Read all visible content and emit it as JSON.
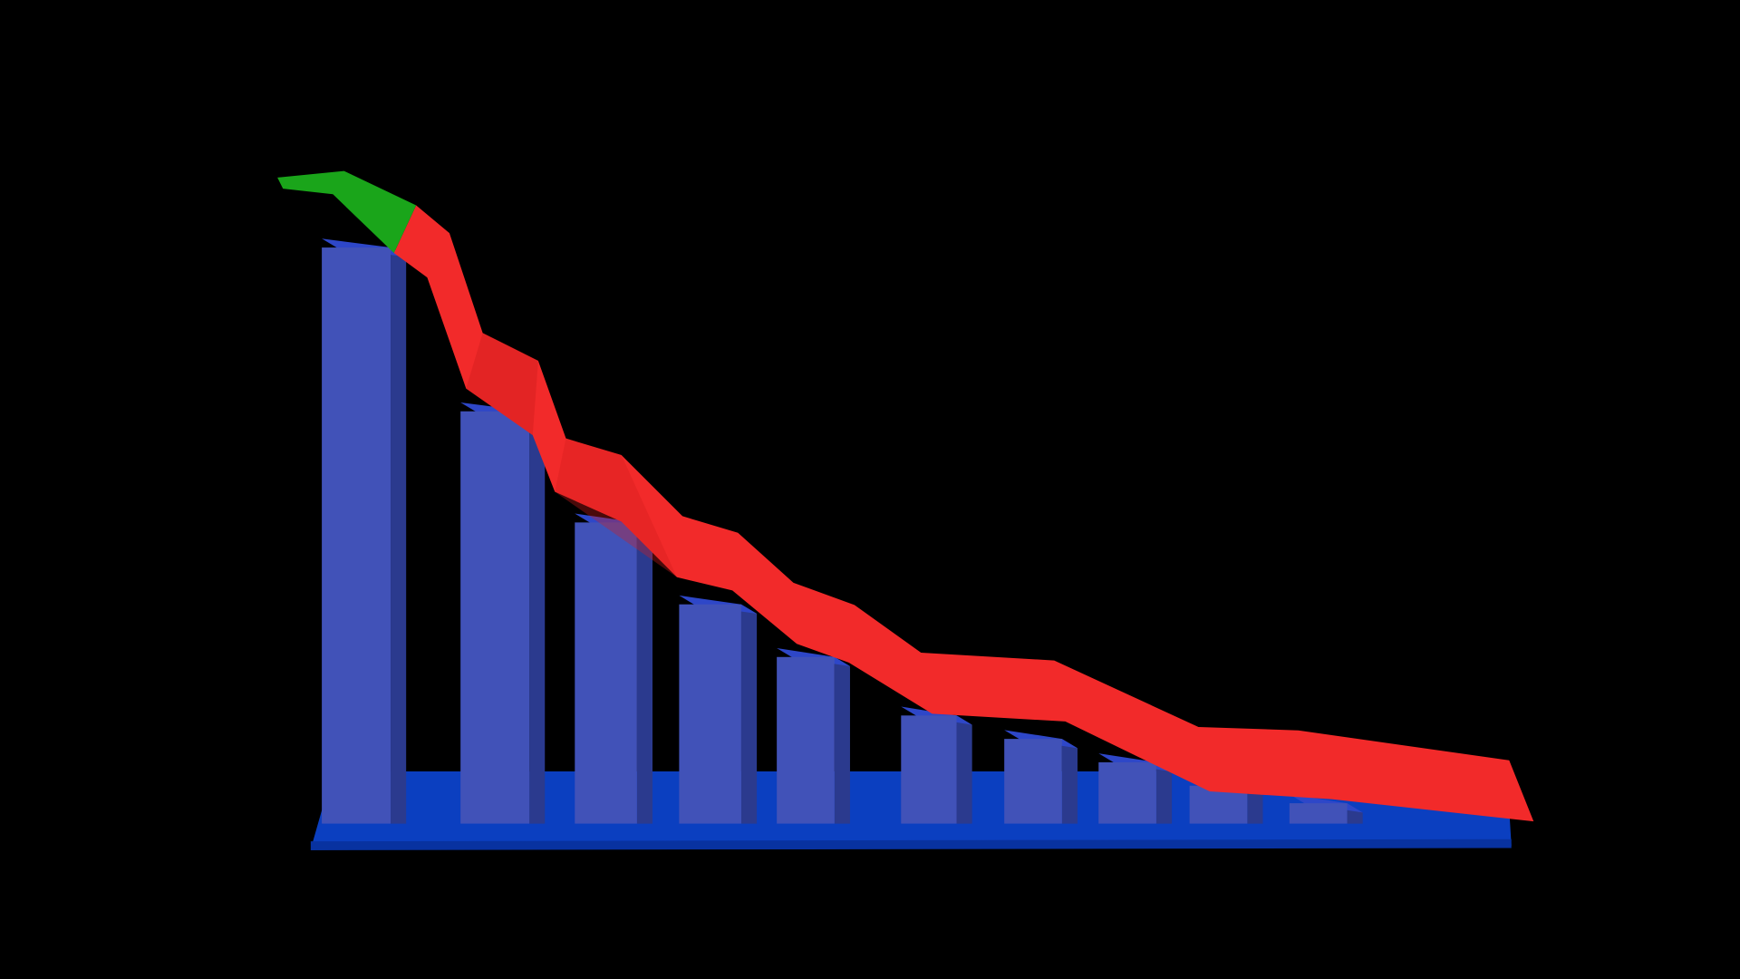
{
  "chart_data": {
    "type": "bar",
    "values": [
      100,
      72,
      53,
      39,
      30,
      20,
      16,
      12,
      8,
      5
    ],
    "color": "#4152b8",
    "ylim": [
      0,
      100
    ]
  }
}
